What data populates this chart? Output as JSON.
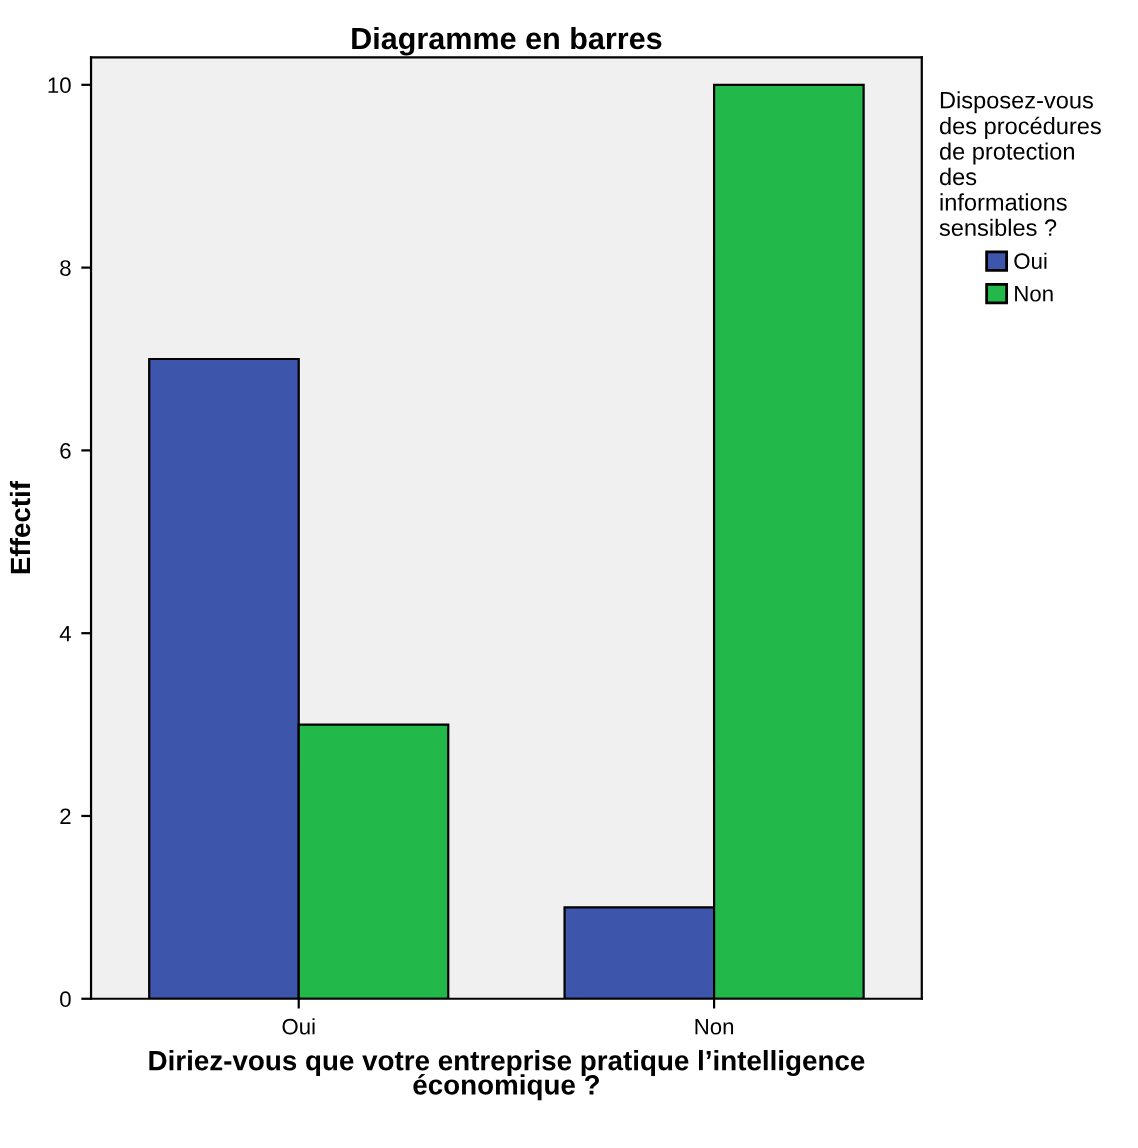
{
  "chart_data": {
    "type": "bar",
    "title": "Diagramme en barres",
    "categories": [
      "Oui",
      "Non"
    ],
    "series": [
      {
        "name": "Oui",
        "color": "#3d56ab",
        "values": [
          7,
          1
        ]
      },
      {
        "name": "Non",
        "color": "#22b94a",
        "values": [
          3,
          10
        ]
      }
    ],
    "xlabel": "Diriez-vous que votre entreprise pratique l’intelligence\néconomique ?",
    "ylabel": "Effectif",
    "legend_title": "Disposez-vous\ndes procédures\nde protection\ndes\ninformations\nsensibles ?",
    "ylim": [
      0,
      10.3
    ],
    "yticks": [
      0,
      2,
      4,
      6,
      8,
      10
    ],
    "grid": false,
    "legend": "right"
  }
}
